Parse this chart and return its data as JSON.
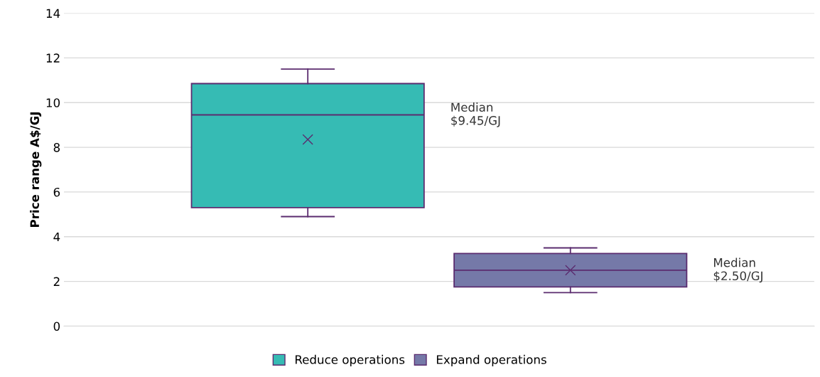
{
  "chart_data": {
    "type": "box",
    "ylabel": "Price range A$/GJ",
    "categories": [
      null
    ],
    "series": [
      {
        "name": "Reduce operations",
        "color": "#36bbb4",
        "boxes": [
          {
            "low": 4.9,
            "q1": 5.3,
            "median": 9.45,
            "q3": 10.85,
            "high": 11.5,
            "mean": 8.35
          }
        ]
      },
      {
        "name": "Expand operations",
        "color": "#7579a8",
        "boxes": [
          {
            "low": 1.5,
            "q1": 1.75,
            "median": 2.5,
            "q3": 3.25,
            "high": 3.5,
            "mean": 2.5
          }
        ]
      }
    ],
    "annotations": [
      "Median\n$9.45/GJ",
      "Median\n$2.50/GJ"
    ],
    "ylim": [
      0,
      14
    ],
    "yticks": [
      0,
      2,
      4,
      6,
      8,
      10,
      12,
      14
    ],
    "grid": "y",
    "legend": "bottom",
    "marker": "cross"
  }
}
